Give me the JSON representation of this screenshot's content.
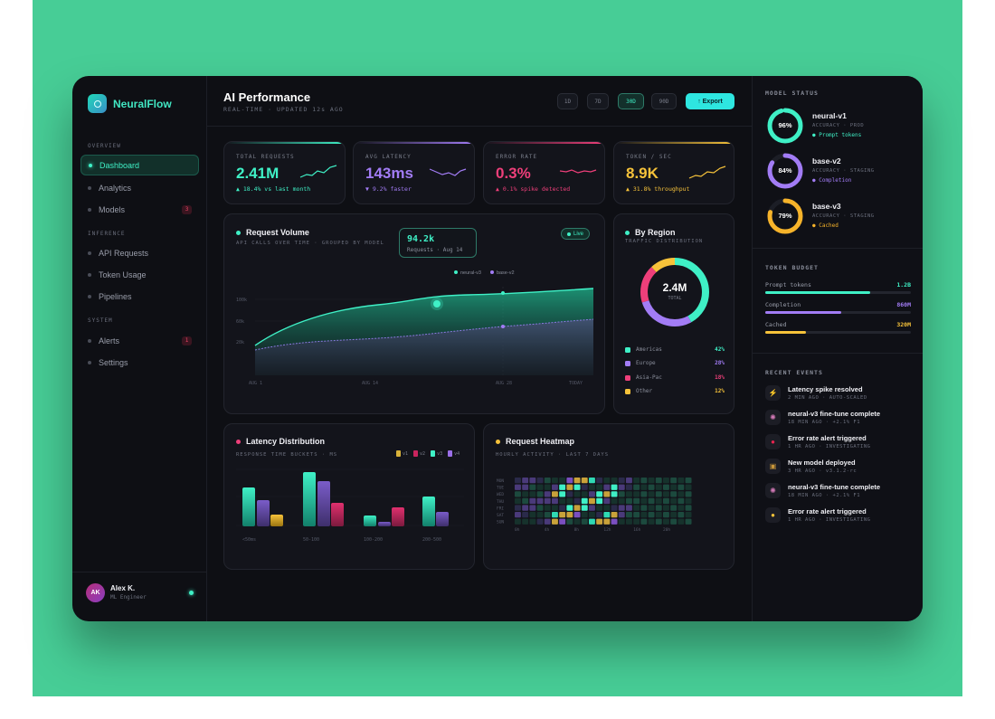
{
  "app": {
    "name": "NeuralFlow"
  },
  "sidebar": {
    "sections": {
      "overview": "OVERVIEW",
      "inference": "INFERENCE",
      "system": "SYSTEM"
    },
    "items": [
      {
        "label": "Dashboard",
        "active": true
      },
      {
        "label": "Analytics"
      },
      {
        "label": "Models",
        "badge": "3"
      },
      {
        "label": "API Requests"
      },
      {
        "label": "Token Usage"
      },
      {
        "label": "Pipelines"
      },
      {
        "label": "Alerts",
        "badge": "1"
      },
      {
        "label": "Settings"
      }
    ],
    "user": {
      "initials": "AK",
      "name": "Alex K.",
      "role": "ML Engineer"
    }
  },
  "header": {
    "title": "AI Performance",
    "subtitle": "REAL-TIME · UPDATED 12s AGO",
    "ranges": [
      "1D",
      "7D",
      "30D",
      "90D"
    ],
    "active_range": "30D",
    "export_label": "↑ Export"
  },
  "kpis": [
    {
      "label": "TOTAL REQUESTS",
      "value": "2.41M",
      "delta": "▲ 18.4% vs last month",
      "color": "#3ff0c6"
    },
    {
      "label": "AVG LATENCY",
      "value": "143ms",
      "delta": "▼ 9.2% faster",
      "color": "#a27cf5"
    },
    {
      "label": "ERROR RATE",
      "value": "0.3%",
      "delta": "▲ 0.1% spike detected",
      "color": "#ee3f7a"
    },
    {
      "label": "TOKEN / SEC",
      "value": "8.9K",
      "delta": "▲ 31.8% throughput",
      "color": "#f6c23a"
    }
  ],
  "request_volume": {
    "title": "Request Volume",
    "subtitle": "API CALLS OVER TIME · GROUPED BY MODEL",
    "tooltip_value": "94.2k",
    "tooltip_label": "Requests · Aug 14",
    "live_label": "Live",
    "legend": [
      "neural-v3",
      "base-v2"
    ],
    "y_ticks": [
      "100k",
      "60k",
      "20k"
    ],
    "x_ticks": [
      "AUG 1",
      "AUG 14",
      "AUG 28",
      "TODAY"
    ]
  },
  "region": {
    "title": "By Region",
    "subtitle": "TRAFFIC DISTRIBUTION",
    "total": "2.4M",
    "total_label": "TOTAL",
    "rows": [
      {
        "name": "Americas",
        "value": "42%",
        "color": "#3ff0c6"
      },
      {
        "name": "Europe",
        "value": "28%",
        "color": "#a27cf5"
      },
      {
        "name": "Asia-Pac",
        "value": "18%",
        "color": "#ee3f7a"
      },
      {
        "name": "Other",
        "value": "12%",
        "color": "#f6c23a"
      }
    ]
  },
  "latency": {
    "title": "Latency Distribution",
    "subtitle": "RESPONSE TIME BUCKETS · MS",
    "legend": [
      "v1",
      "v2",
      "v3",
      "v4"
    ],
    "buckets": [
      "<50ms",
      "50-100",
      "100-200",
      "200-500"
    ]
  },
  "heatmap": {
    "title": "Request Heatmap",
    "subtitle": "HOURLY ACTIVITY · LAST 7 DAYS",
    "days": [
      "MON",
      "TUE",
      "WED",
      "THU",
      "FRI",
      "SAT",
      "SUN"
    ],
    "hours": [
      "0h",
      "4h",
      "8h",
      "12h",
      "16h",
      "20h"
    ]
  },
  "model_status": {
    "title": "MODEL STATUS",
    "models": [
      {
        "pct": "96%",
        "name": "neural-v1",
        "meta": "ACCURACY · PROD",
        "tag": "● Prompt tokens",
        "color": "#3ff0c6",
        "value": 0.96
      },
      {
        "pct": "84%",
        "name": "base-v2",
        "meta": "ACCURACY · STAGING",
        "tag": "● Completion",
        "color": "#a27cf5",
        "value": 0.84
      },
      {
        "pct": "79%",
        "name": "base-v3",
        "meta": "ACCURACY · STAGING",
        "tag": "● Cached",
        "color": "#f6b32a",
        "value": 0.79
      }
    ]
  },
  "token_budget": {
    "title": "TOKEN BUDGET",
    "rows": [
      {
        "label": "Prompt tokens",
        "value": "1.2B",
        "color": "#3ff0c6",
        "fill": 0.72
      },
      {
        "label": "Completion",
        "value": "860M",
        "color": "#a27cf5",
        "fill": 0.52
      },
      {
        "label": "Cached",
        "value": "320M",
        "color": "#f6c23a",
        "fill": 0.28
      }
    ]
  },
  "events": {
    "title": "RECENT EVENTS",
    "items": [
      {
        "icon": "bolt-icon",
        "glyph": "⚡",
        "title": "Latency spike resolved",
        "meta": "2 MIN AGO · AUTO-SCALED"
      },
      {
        "icon": "brain-icon",
        "glyph": "🧠",
        "title": "neural-v3 fine-tune complete",
        "meta": "18 MIN AGO · +2.1% F1"
      },
      {
        "icon": "alert-dot-icon",
        "glyph": "●",
        "title": "Error rate alert triggered",
        "meta": "1 HR AGO · INVESTIGATING"
      },
      {
        "icon": "package-icon",
        "glyph": "▣",
        "title": "New model deployed",
        "meta": "3 HR AGO · v3.1.2-rc"
      },
      {
        "icon": "brain-icon",
        "glyph": "🧠",
        "title": "neural-v3 fine-tune complete",
        "meta": "18 MIN AGO · +2.1% F1"
      },
      {
        "icon": "alert-dot-icon",
        "glyph": "●",
        "title": "Error rate alert triggered",
        "meta": "1 HR AGO · INVESTIGATING"
      }
    ]
  }
}
